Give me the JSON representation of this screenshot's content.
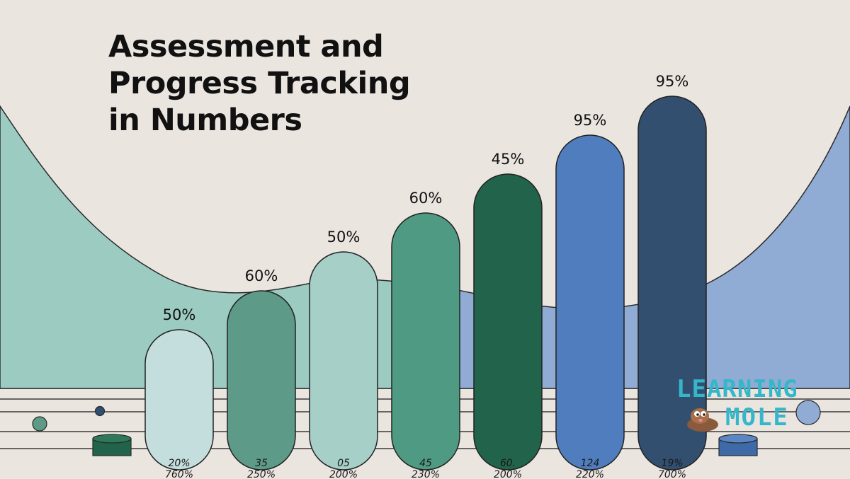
{
  "header": {
    "title_lines": [
      "Assessment and",
      "Progress Tracking",
      "in Numbers"
    ]
  },
  "logo": {
    "line1": "LEARNING",
    "line2": "MOLE"
  },
  "chart_data": {
    "type": "bar",
    "title": "Assessment and Progress Tracking in Numbers",
    "value_labels": [
      "50%",
      "60%",
      "50%",
      "60%",
      "45%",
      "95%",
      "95%"
    ],
    "values": [
      50,
      60,
      50,
      60,
      45,
      95,
      95
    ],
    "bottom_labels_row1": [
      "20%",
      "35",
      "05",
      "45",
      "60.",
      "124",
      "19%"
    ],
    "bottom_labels_row2": [
      "760%",
      "250%",
      "200%",
      "230%",
      "200%",
      "220%",
      "700%"
    ],
    "bar_colors": [
      "#c4dedd",
      "#5d9a88",
      "#a5cfc7",
      "#4f9a82",
      "#21644b",
      "#4f7dbd",
      "#334f70"
    ],
    "background_colors": {
      "left_wave": "#9ccbc1",
      "right_wave": "#90acd5",
      "page": "#ebe5e0"
    }
  }
}
